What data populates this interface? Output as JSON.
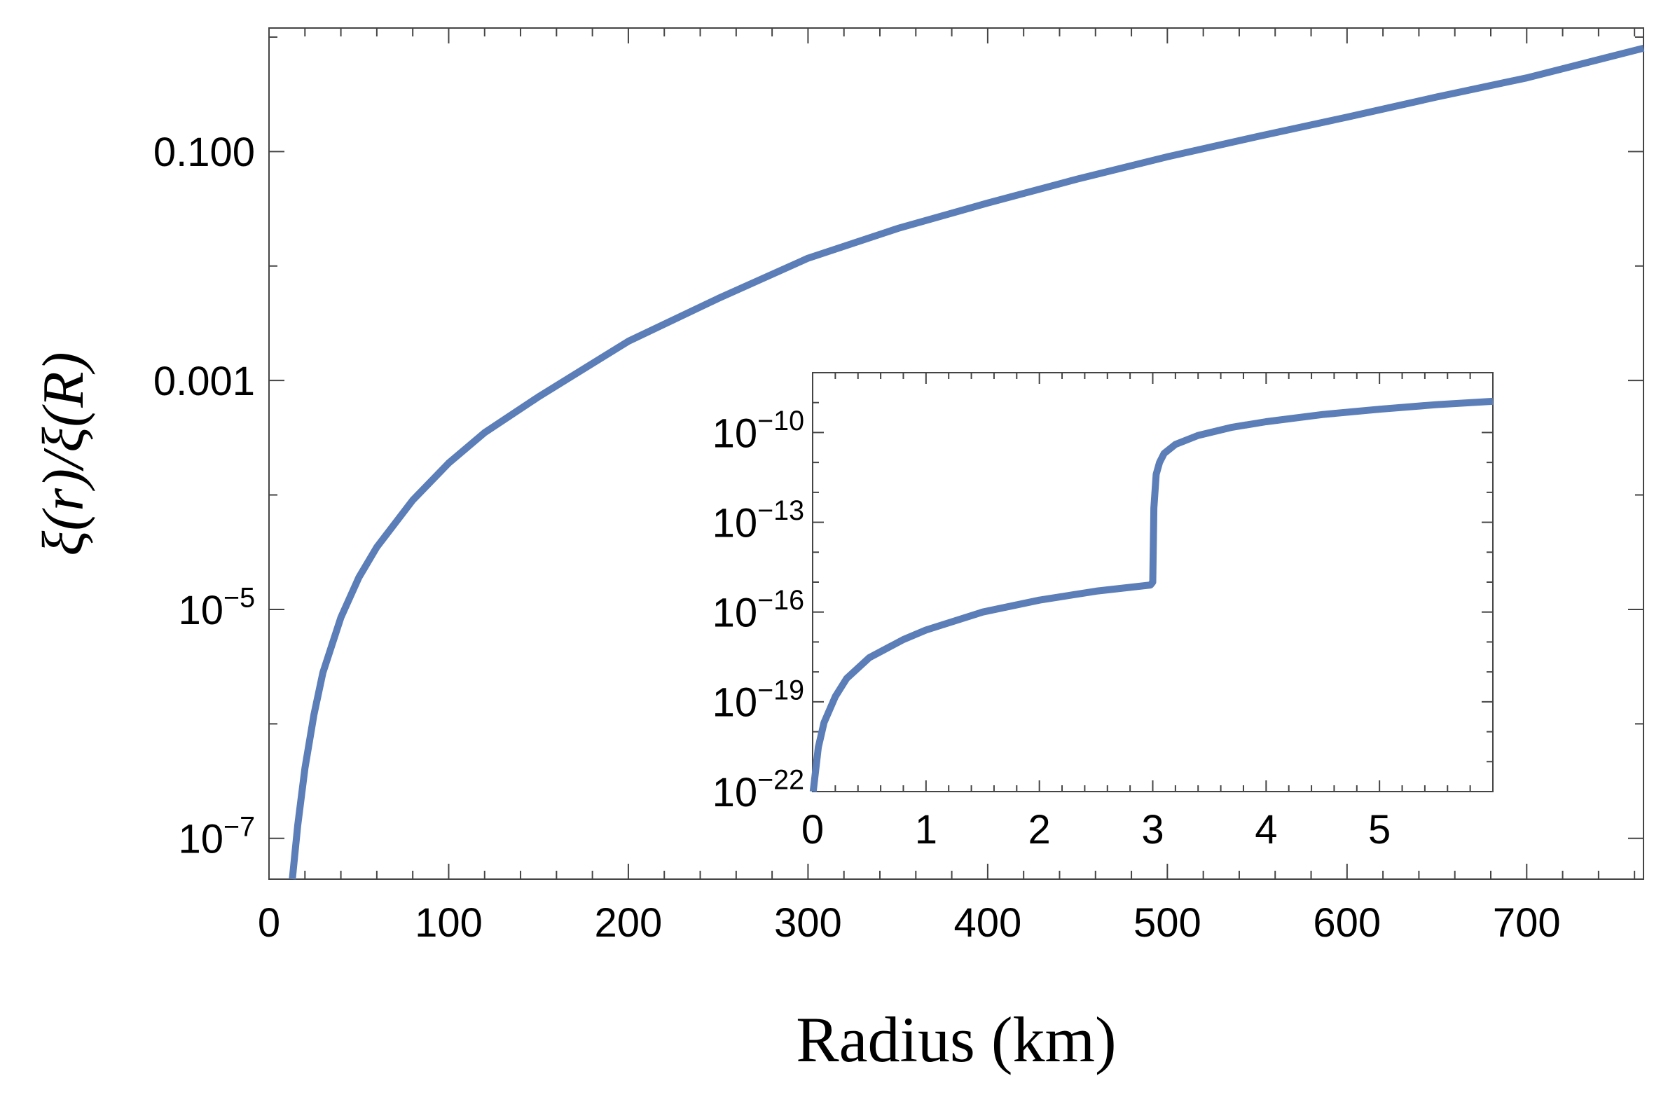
{
  "chart_data": [
    {
      "type": "line",
      "xlabel": "Radius (km)",
      "ylabel": "ξ(r)/ξ(R)",
      "yscale": "log",
      "xlim": [
        0,
        765
      ],
      "ylim": [
        4.4e-08,
        1.2
      ],
      "xticks": [
        0,
        100,
        200,
        300,
        400,
        500,
        600,
        700
      ],
      "xtick_labels": [
        "0",
        "100",
        "200",
        "300",
        "400",
        "500",
        "600",
        "700"
      ],
      "yticks": [
        {
          "value": 1e-07,
          "base": "10",
          "exp": "−7"
        },
        {
          "value": 1e-05,
          "base": "10",
          "exp": "−5"
        },
        {
          "value": 0.001,
          "text": "0.001"
        },
        {
          "value": 0.1,
          "text": "0.100"
        }
      ],
      "grid": false,
      "color": "#5b7db8",
      "series": [
        {
          "x": [
            13,
            16,
            20,
            25,
            30,
            40,
            50,
            60,
            80,
            100,
            120,
            150,
            200,
            250,
            300,
            350,
            400,
            450,
            500,
            550,
            600,
            650,
            700,
            765
          ],
          "y": [
            4.4e-08,
            1.3e-07,
            4.1e-07,
            1.2e-06,
            2.8e-06,
            8.5e-06,
            1.9e-05,
            3.5e-05,
            9e-05,
            0.00019,
            0.00035,
            0.00072,
            0.0022,
            0.0052,
            0.0117,
            0.0213,
            0.0355,
            0.0575,
            0.09,
            0.135,
            0.2,
            0.3,
            0.44,
            0.8
          ]
        }
      ]
    },
    {
      "type": "line",
      "inset": true,
      "yscale": "log",
      "xlim": [
        0,
        6
      ],
      "ylim": [
        1e-22,
        1e-08
      ],
      "xticks": [
        0,
        1,
        2,
        3,
        4,
        5
      ],
      "xtick_labels": [
        "0",
        "1",
        "2",
        "3",
        "4",
        "5"
      ],
      "yticks": [
        {
          "value": 1e-22,
          "base": "10",
          "exp": "−22"
        },
        {
          "value": 1e-19,
          "base": "10",
          "exp": "−19"
        },
        {
          "value": 1e-16,
          "base": "10",
          "exp": "−16"
        },
        {
          "value": 1e-13,
          "base": "10",
          "exp": "−13"
        },
        {
          "value": 1e-10,
          "base": "10",
          "exp": "−10"
        }
      ],
      "grid": false,
      "color": "#5b7db8",
      "series": [
        {
          "x": [
            0.005,
            0.05,
            0.1,
            0.2,
            0.3,
            0.5,
            0.8,
            1.0,
            1.5,
            2.0,
            2.5,
            2.98,
            3.0,
            3.01,
            3.03,
            3.06,
            3.1,
            3.2,
            3.4,
            3.7,
            4.0,
            4.5,
            5.0,
            5.5,
            6.0
          ],
          "y": [
            1e-22,
            3e-21,
            2e-20,
            1.5e-19,
            6e-19,
            3e-18,
            1.2e-17,
            2.5e-17,
            1e-16,
            2.5e-16,
            5e-16,
            8e-16,
            1e-15,
            3e-13,
            4e-12,
            1e-11,
            2e-11,
            4e-11,
            8e-11,
            1.5e-10,
            2.3e-10,
            4e-10,
            6e-10,
            8.5e-10,
            1.1e-09
          ]
        }
      ]
    }
  ]
}
